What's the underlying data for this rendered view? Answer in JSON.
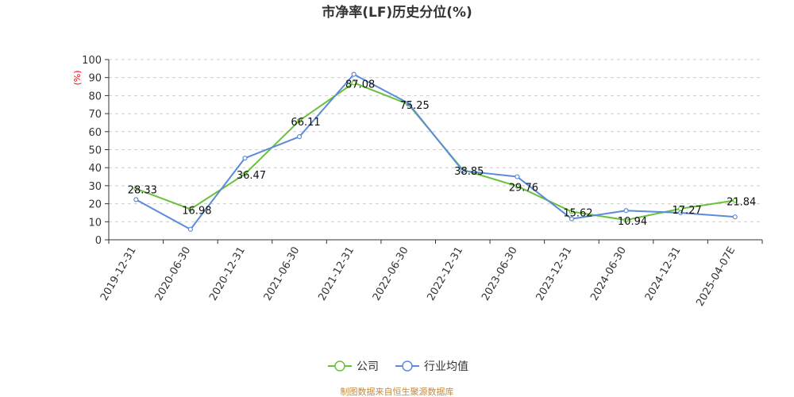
{
  "chart_data": {
    "type": "line",
    "title": "市净率(LF)历史分位(%)",
    "ylabel": "(%)",
    "ylim": [
      0,
      100
    ],
    "yticks": [
      0,
      10,
      20,
      30,
      40,
      50,
      60,
      70,
      80,
      90,
      100
    ],
    "grid": true,
    "legend_position": "bottom",
    "categories": [
      "2019-12-31",
      "2020-06-30",
      "2020-12-31",
      "2021-06-30",
      "2021-12-31",
      "2022-06-30",
      "2022-12-31",
      "2023-06-30",
      "2023-12-31",
      "2024-06-30",
      "2024-12-31",
      "2025-04-07E"
    ],
    "series": [
      {
        "name": "公司",
        "color": "#67c23a",
        "values": [
          28.33,
          16.98,
          36.47,
          66.11,
          87.08,
          75.25,
          38.85,
          29.76,
          15.62,
          10.94,
          17.27,
          21.84
        ],
        "labels": [
          "28.33",
          "16.98",
          "36.47",
          "66.11",
          "87.08",
          "75.25",
          "38.85",
          "29.76",
          "15.62",
          "10.94",
          "17.27",
          "21.84"
        ]
      },
      {
        "name": "行业均值",
        "color": "#5b8bd9",
        "values": [
          22.3,
          5.8,
          45.3,
          57.2,
          91.8,
          75.8,
          38.3,
          35.0,
          11.6,
          16.2,
          15.0,
          12.7
        ]
      }
    ]
  },
  "footer": "制图数据来自恒生聚源数据库"
}
